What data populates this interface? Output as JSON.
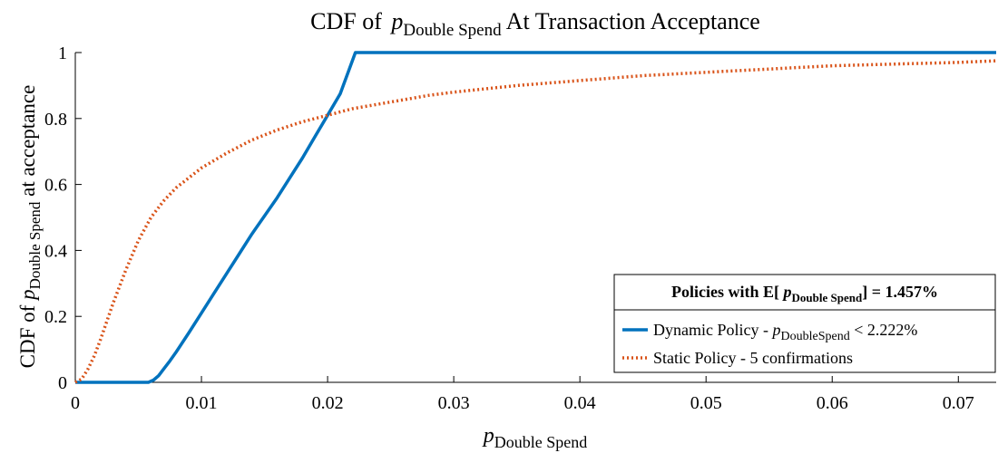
{
  "chart_data": {
    "type": "line",
    "title": {
      "prefix": "CDF of ",
      "var": "p",
      "sub": "Double Spend",
      "suffix": " At Transaction Acceptance"
    },
    "xlabel": {
      "var": "p",
      "sub": "Double Spend"
    },
    "ylabel": {
      "prefix": "CDF of ",
      "var": "p",
      "sub": "Double Spend",
      "suffix": " at acceptance"
    },
    "xlim": [
      0,
      0.073
    ],
    "ylim": [
      0,
      1
    ],
    "xticks": [
      0,
      0.01,
      0.02,
      0.03,
      0.04,
      0.05,
      0.06,
      0.07
    ],
    "xtick_labels": [
      "0",
      "0.01",
      "0.02",
      "0.03",
      "0.04",
      "0.05",
      "0.06",
      "0.07"
    ],
    "yticks": [
      0,
      0.2,
      0.4,
      0.6,
      0.8,
      1
    ],
    "ytick_labels": [
      "0",
      "0.2",
      "0.4",
      "0.6",
      "0.8",
      "1"
    ],
    "grid": false,
    "legend": {
      "placement": "bottom-right",
      "title": {
        "prefix": "Policies with E[ ",
        "var": "p",
        "sub": "Double Spend",
        "suffix": "] = 1.457%"
      },
      "entries": [
        {
          "prefix": "Dynamic Policy -  ",
          "var": "p",
          "sub": "DoubleSpend",
          "suffix": " < 2.222%"
        },
        {
          "text": "Static Policy - 5 confirmations"
        }
      ]
    },
    "series": [
      {
        "color": "#0072BD",
        "style": "solid",
        "x": [
          0,
          0.0058,
          0.0062,
          0.0066,
          0.007,
          0.0075,
          0.008,
          0.009,
          0.01,
          0.011,
          0.012,
          0.013,
          0.014,
          0.015,
          0.016,
          0.017,
          0.018,
          0.019,
          0.02,
          0.021,
          0.0222,
          0.073
        ],
        "y": [
          0,
          0,
          0.007,
          0.02,
          0.04,
          0.065,
          0.092,
          0.15,
          0.21,
          0.27,
          0.33,
          0.39,
          0.45,
          0.505,
          0.56,
          0.62,
          0.68,
          0.745,
          0.81,
          0.875,
          1,
          1
        ]
      },
      {
        "color": "#D95319",
        "style": "dotted",
        "x": [
          0,
          0.0005,
          0.001,
          0.0015,
          0.002,
          0.003,
          0.004,
          0.005,
          0.006,
          0.007,
          0.008,
          0.009,
          0.01,
          0.012,
          0.014,
          0.016,
          0.018,
          0.02,
          0.022,
          0.025,
          0.028,
          0.03,
          0.035,
          0.04,
          0.045,
          0.05,
          0.055,
          0.06,
          0.065,
          0.07,
          0.073
        ],
        "y": [
          0,
          0.01,
          0.04,
          0.08,
          0.13,
          0.24,
          0.34,
          0.43,
          0.5,
          0.55,
          0.59,
          0.62,
          0.65,
          0.695,
          0.735,
          0.765,
          0.79,
          0.81,
          0.83,
          0.85,
          0.87,
          0.88,
          0.9,
          0.915,
          0.93,
          0.94,
          0.95,
          0.96,
          0.965,
          0.97,
          0.975
        ]
      }
    ]
  }
}
